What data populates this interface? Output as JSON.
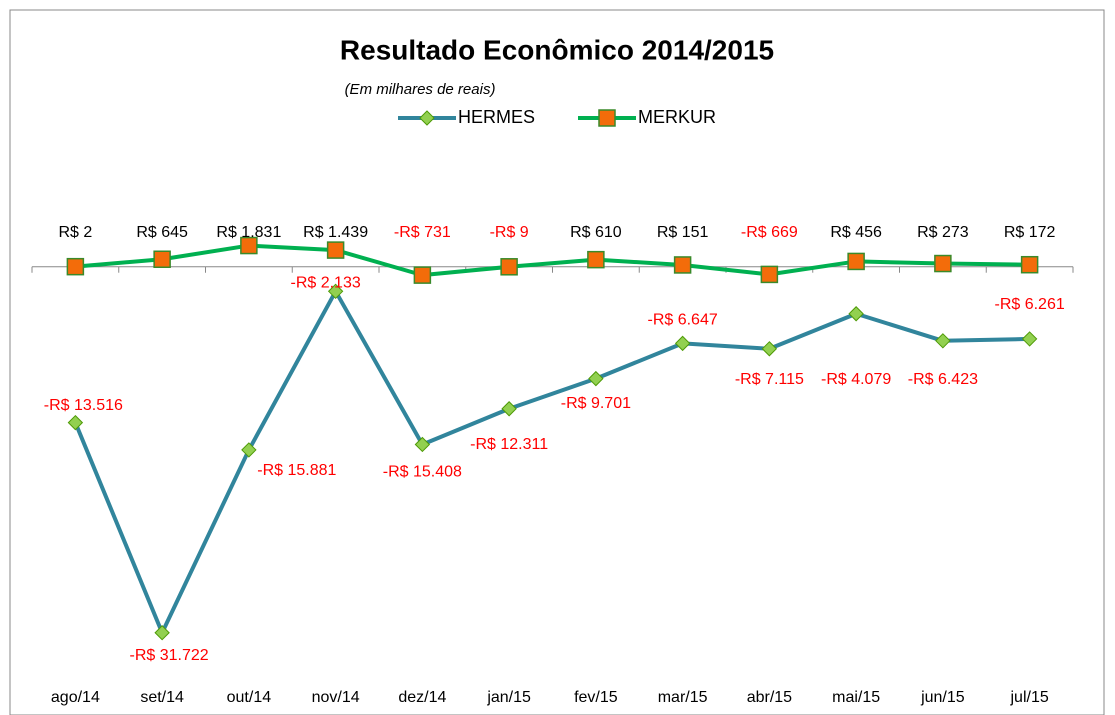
{
  "chart_data": {
    "type": "line",
    "title": "Resultado Econômico 2014/2015",
    "subtitle": "(Em milhares de reais)",
    "categories": [
      "ago/14",
      "set/14",
      "out/14",
      "nov/14",
      "dez/14",
      "jan/15",
      "fev/15",
      "mar/15",
      "abr/15",
      "mai/15",
      "jun/15",
      "jul/15"
    ],
    "series": [
      {
        "name": "HERMES",
        "color": "#31859c",
        "marker_color": "#92d050",
        "marker": "diamond",
        "values": [
          -13516,
          -31722,
          -15881,
          -2133,
          -15408,
          -12311,
          -9701,
          -6647,
          -7115,
          -4079,
          -6423,
          -6261
        ],
        "value_labels": [
          "-R$ 13.516",
          "-R$ 31.722",
          "-R$ 15.881",
          "-R$ 2.133",
          "-R$ 15.408",
          "-R$ 12.311",
          "-R$ 9.701",
          "-R$ 6.647",
          "-R$ 7.115",
          "-R$ 4.079",
          "-R$ 6.423",
          "-R$ 6.261"
        ]
      },
      {
        "name": "MERKUR",
        "color": "#00b050",
        "marker_color": "#f36c0a",
        "marker": "square",
        "values": [
          2,
          645,
          1831,
          1439,
          -731,
          -9,
          610,
          151,
          -669,
          456,
          273,
          172
        ],
        "value_labels": [
          "R$ 2",
          "R$ 645",
          "R$ 1.831",
          "R$ 1.439",
          "-R$ 731",
          "-R$ 9",
          "R$ 610",
          "R$ 151",
          "-R$ 669",
          "R$ 456",
          "R$ 273",
          "R$ 172"
        ]
      }
    ],
    "ylim": [
      -34000,
      5000
    ],
    "legend": "top"
  }
}
